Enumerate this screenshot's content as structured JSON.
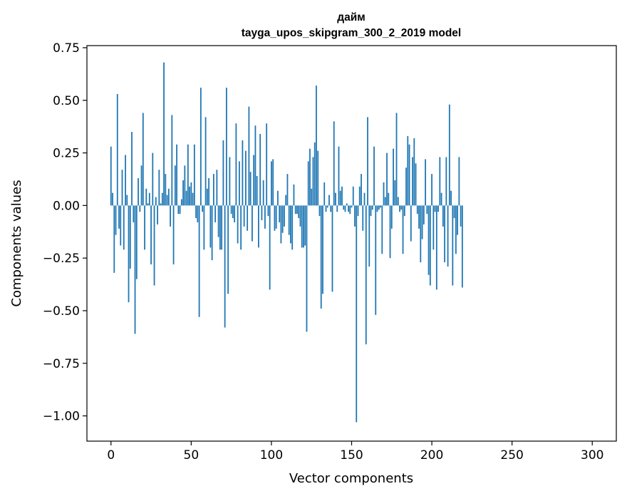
{
  "chart_data": {
    "type": "bar",
    "title": "дайм",
    "subtitle": "tayga_upos_skipgram_300_2_2019 model",
    "xlabel": "Vector components",
    "ylabel": "Components values",
    "xlim": [
      -15,
      315
    ],
    "ylim": [
      -1.12,
      0.76
    ],
    "xticks": [
      0,
      50,
      100,
      150,
      200,
      250,
      300
    ],
    "yticks": [
      -1.0,
      -0.75,
      -0.5,
      -0.25,
      0.0,
      0.25,
      0.5,
      0.75
    ],
    "ytick_labels": [
      "−1.00",
      "−0.75",
      "−0.50",
      "−0.25",
      "0.00",
      "0.25",
      "0.50",
      "0.75"
    ],
    "color": "#1f77b4",
    "grid": false,
    "x_start": 0,
    "values": [
      0.28,
      0.06,
      -0.32,
      -0.14,
      0.53,
      -0.11,
      -0.19,
      0.17,
      -0.21,
      0.24,
      0.05,
      -0.46,
      -0.3,
      0.35,
      -0.08,
      -0.61,
      -0.35,
      0.13,
      -0.03,
      0.19,
      0.44,
      -0.21,
      0.08,
      0.01,
      0.06,
      -0.28,
      0.25,
      -0.38,
      0.04,
      -0.09,
      0.17,
      0.01,
      0.06,
      0.68,
      0.15,
      0.05,
      0.08,
      -0.1,
      0.43,
      -0.28,
      0.19,
      0.29,
      -0.04,
      -0.04,
      0.03,
      0.12,
      0.19,
      0.07,
      0.29,
      0.09,
      0.11,
      0.06,
      0.29,
      -0.06,
      -0.08,
      -0.53,
      0.56,
      -0.03,
      -0.21,
      0.42,
      0.08,
      0.13,
      -0.2,
      -0.26,
      0.15,
      -0.08,
      0.17,
      -0.15,
      -0.21,
      -0.21,
      0.31,
      -0.58,
      0.56,
      -0.42,
      0.23,
      -0.04,
      -0.06,
      -0.08,
      0.39,
      -0.18,
      0.21,
      -0.21,
      0.31,
      -0.1,
      0.26,
      -0.12,
      0.47,
      0.16,
      -0.17,
      0.24,
      0.38,
      0.14,
      -0.2,
      0.34,
      -0.07,
      0.12,
      -0.11,
      0.39,
      -0.05,
      -0.4,
      0.21,
      0.22,
      -0.12,
      -0.11,
      0.07,
      -0.08,
      -0.18,
      -0.13,
      -0.1,
      0.05,
      0.15,
      -0.14,
      -0.18,
      -0.21,
      0.1,
      -0.04,
      -0.04,
      -0.06,
      -0.1,
      -0.2,
      -0.2,
      -0.19,
      -0.6,
      0.21,
      0.27,
      0.08,
      0.23,
      0.3,
      0.57,
      0.26,
      -0.05,
      -0.49,
      -0.42,
      0.11,
      -0.03,
      -0.01,
      0.05,
      -0.03,
      -0.41,
      0.4,
      0.06,
      -0.03,
      0.28,
      0.07,
      0.09,
      -0.02,
      -0.03,
      0.01,
      -0.03,
      -0.04,
      -0.01,
      0.09,
      -0.1,
      -1.03,
      -0.05,
      0.09,
      0.15,
      -0.12,
      0.06,
      -0.66,
      0.42,
      -0.29,
      -0.05,
      -0.02,
      0.28,
      -0.52,
      -0.03,
      -0.02,
      -0.01,
      -0.23,
      0.11,
      0.04,
      0.25,
      0.06,
      -0.25,
      -0.11,
      0.27,
      0.12,
      0.44,
      0.04,
      -0.03,
      -0.02,
      -0.23,
      -0.05,
      0.18,
      0.33,
      0.29,
      -0.17,
      0.23,
      0.32,
      0.2,
      -0.04,
      -0.11,
      -0.27,
      -0.16,
      -0.09,
      0.22,
      -0.04,
      -0.33,
      -0.38,
      0.15,
      -0.21,
      -0.03,
      -0.4,
      -0.03,
      0.23,
      0.06,
      -0.1,
      -0.27,
      0.23,
      -0.29,
      0.48,
      0.07,
      -0.38,
      -0.06,
      -0.23,
      -0.14,
      0.23,
      -0.1,
      -0.39
    ]
  }
}
